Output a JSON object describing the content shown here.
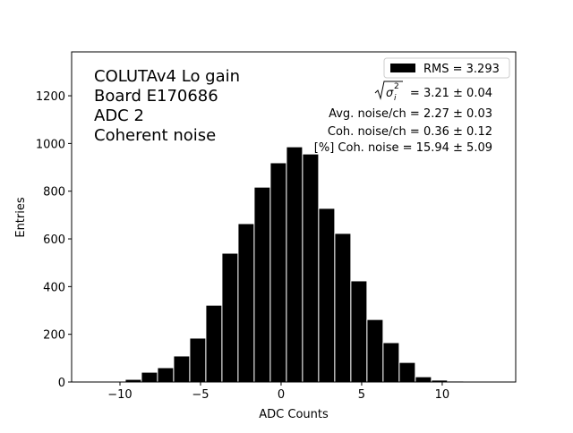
{
  "chart_data": {
    "type": "bar",
    "title": "",
    "xlabel": "ADC Counts",
    "ylabel": "Entries",
    "xlim": [
      -13,
      14.56
    ],
    "ylim": [
      0,
      1384
    ],
    "xticks": [
      -10,
      -5,
      0,
      5,
      10
    ],
    "yticks": [
      0,
      200,
      400,
      600,
      800,
      1000,
      1200
    ],
    "grid": false,
    "legend_position": "top-right",
    "bar_color": "#000000",
    "bar_edge_color": "#ffffff",
    "bin_width": 1,
    "bin_left_edges": [
      -9.67,
      -8.67,
      -7.67,
      -6.67,
      -5.67,
      -4.67,
      -3.67,
      -2.67,
      -1.67,
      -0.67,
      0.33,
      1.33,
      2.33,
      3.33,
      4.33,
      5.33,
      6.33,
      7.33,
      8.33,
      9.33,
      10.33
    ],
    "values": [
      11,
      41,
      60,
      109,
      184,
      322,
      540,
      664,
      817,
      919,
      986,
      956,
      728,
      623,
      424,
      262,
      165,
      82,
      22,
      8,
      4
    ],
    "series": [
      {
        "name": "RMS = 3.293"
      }
    ],
    "annotations_left": [
      "COLUTAv4 Lo gain",
      "Board E170686",
      "ADC 2",
      "Coherent noise"
    ],
    "annotations_right": {
      "sigma_value": "= 3.21 ± 0.04",
      "lines": [
        "Avg. noise/ch = 2.27 ± 0.03",
        "Coh. noise/ch = 0.36 ± 0.12",
        "[%] Coh. noise = 15.94 ± 5.09"
      ]
    }
  }
}
